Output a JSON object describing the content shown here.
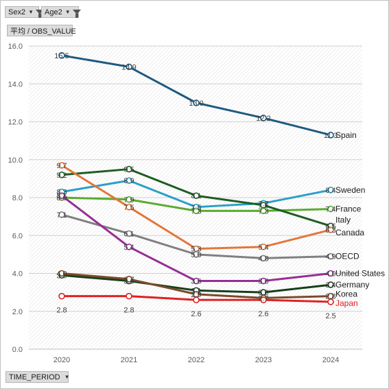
{
  "filters": {
    "sex_label": "Sex2",
    "age_label": "Age2",
    "value_label": "平均 / OBS_VALUE",
    "time_label": "TIME_PERIOD"
  },
  "chart_data": {
    "type": "line",
    "title": "",
    "xlabel": "",
    "ylabel": "",
    "categories": [
      "2020",
      "2021",
      "2022",
      "2023",
      "2024"
    ],
    "ylim": [
      0,
      16
    ],
    "yticks": [
      "0.0",
      "2.0",
      "4.0",
      "6.0",
      "8.0",
      "10.0",
      "12.0",
      "14.0",
      "16.0"
    ],
    "grid": true,
    "series": [
      {
        "name": "Spain",
        "color": "#1f5a80",
        "values": [
          15.5,
          14.9,
          13.0,
          12.2,
          11.3
        ],
        "labels": [
          "15.5",
          "14.9",
          "13.0",
          "12.2",
          "11.3"
        ]
      },
      {
        "name": "Sweden",
        "color": "#2a9fc9",
        "values": [
          8.3,
          8.9,
          7.5,
          7.7,
          8.4
        ],
        "labels": [
          "8.3",
          "8.9",
          "7.5",
          "7.7",
          "8.4"
        ]
      },
      {
        "name": "France",
        "color": "#5aab2f",
        "values": [
          8.0,
          7.9,
          7.3,
          7.3,
          7.4
        ],
        "labels": [
          "8.0",
          "7.9",
          "7.3",
          "7.3",
          "7.4"
        ]
      },
      {
        "name": "Italy",
        "color": "#1d5e20",
        "values": [
          9.2,
          9.5,
          8.1,
          7.6,
          6.5
        ],
        "labels": [
          "9.2",
          "9.5",
          "8.1",
          "7.6",
          "6.5"
        ]
      },
      {
        "name": "Canada",
        "color": "#e2773a",
        "values": [
          9.7,
          7.5,
          5.3,
          5.4,
          6.3
        ],
        "labels": [
          "9.7",
          "7.5",
          "5.3",
          "5.4",
          "6.3"
        ]
      },
      {
        "name": "OECD",
        "color": "#808080",
        "values": [
          7.1,
          6.1,
          5.0,
          4.8,
          4.9
        ],
        "labels": [
          "7.1",
          "6.1",
          "5.0",
          "4.8",
          "4.9"
        ]
      },
      {
        "name": "United States",
        "color": "#962e96",
        "values": [
          8.1,
          5.4,
          3.6,
          3.6,
          4.0
        ],
        "labels": [
          "8.1",
          "5.4",
          "3.6",
          "3.6",
          "4.0"
        ]
      },
      {
        "name": "Germany",
        "color": "#163f1a",
        "values": [
          3.9,
          3.6,
          3.1,
          3.0,
          3.4
        ],
        "labels": [
          "3.9",
          "3.6",
          "3.1",
          "3.0",
          "3.4"
        ]
      },
      {
        "name": "Korea",
        "color": "#7b4a2a",
        "values": [
          4.0,
          3.7,
          2.9,
          2.7,
          2.8
        ],
        "labels": [
          "4.0",
          "3.7",
          "2.9",
          "2.7",
          "2.8"
        ]
      },
      {
        "name": "Japan",
        "color": "#e02020",
        "values": [
          2.8,
          2.8,
          2.6,
          2.6,
          2.5
        ],
        "labels": [
          "2.8",
          "2.8",
          "2.6",
          "2.6",
          "2.5"
        ]
      }
    ]
  }
}
